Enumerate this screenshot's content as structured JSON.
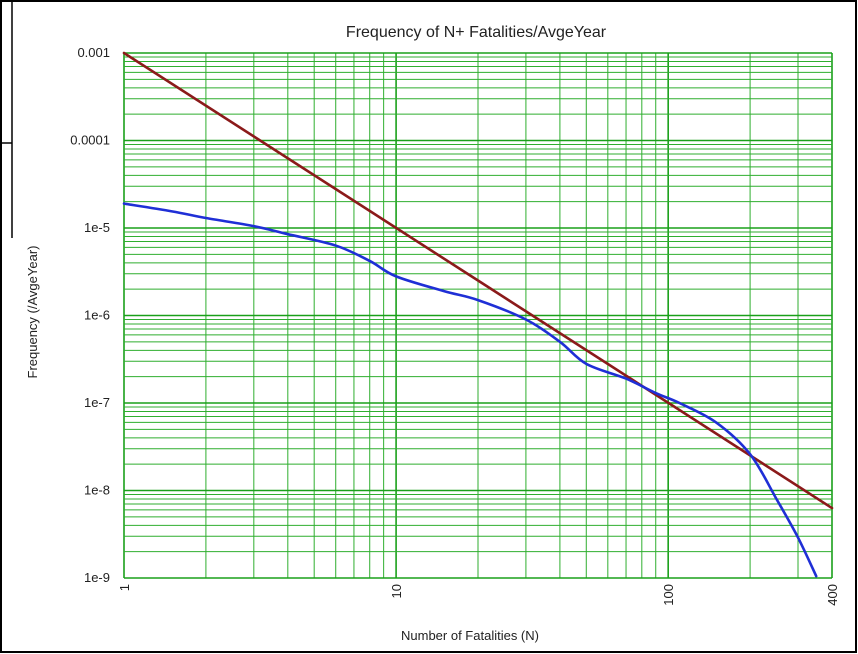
{
  "chart_data": {
    "type": "line",
    "title": "Frequency of N+ Fatalities/AvgeYear",
    "xlabel": "Number of Fatalities (N)",
    "ylabel": "Frequency (/AvgeYear)",
    "xscale": "log",
    "yscale": "log",
    "xlim": [
      1,
      400
    ],
    "ylim": [
      1e-09,
      0.001
    ],
    "x_ticks": [
      {
        "value": 1,
        "label": "1"
      },
      {
        "value": 10,
        "label": "10"
      },
      {
        "value": 100,
        "label": "100"
      },
      {
        "value": 400,
        "label": "400"
      }
    ],
    "y_ticks": [
      {
        "value": 0.001,
        "label": "0.001"
      },
      {
        "value": 0.0001,
        "label": "0.0001"
      },
      {
        "value": 1e-05,
        "label": "1e-5"
      },
      {
        "value": 1e-06,
        "label": "1e-6"
      },
      {
        "value": 1e-07,
        "label": "1e-7"
      },
      {
        "value": 1e-08,
        "label": "1e-8"
      },
      {
        "value": 1e-09,
        "label": "1e-9"
      }
    ],
    "grid": true,
    "grid_color": "#1aa01a",
    "series": [
      {
        "color": "#8b1a1a",
        "x": [
          1,
          400
        ],
        "y": [
          0.001,
          6.3e-09
        ]
      },
      {
        "color": "#1f2fd6",
        "x": [
          1,
          1.5,
          2,
          3,
          4,
          6,
          8,
          10,
          15,
          20,
          30,
          40,
          50,
          70,
          90,
          110,
          150,
          200,
          250,
          300,
          350
        ],
        "y": [
          1.9e-05,
          1.55e-05,
          1.3e-05,
          1.05e-05,
          8.5e-06,
          6.3e-06,
          4.2e-06,
          2.8e-06,
          1.9e-06,
          1.5e-06,
          9e-07,
          5e-07,
          2.8e-07,
          1.9e-07,
          1.3e-07,
          1e-07,
          6e-08,
          2.6e-08,
          8e-09,
          2.9e-09,
          1.05e-09
        ]
      }
    ]
  }
}
